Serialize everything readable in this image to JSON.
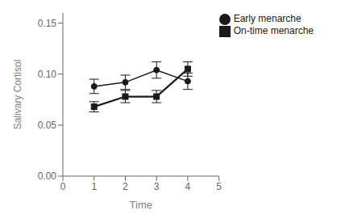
{
  "chart_data": {
    "type": "line",
    "xlabel": "Time",
    "ylabel": "Salivary Cortisol",
    "x": [
      1,
      2,
      3,
      4
    ],
    "series": [
      {
        "name": "Early menarche",
        "color": "#1a1a1a",
        "marker": "circle",
        "line_style": "solid",
        "values": [
          0.088,
          0.092,
          0.104,
          0.093
        ],
        "yerr": [
          0.007,
          0.007,
          0.008,
          0.008
        ]
      },
      {
        "name": "On-time menarche",
        "color": "#1a1a1a",
        "marker": "square",
        "line_style": "solid",
        "values": [
          0.068,
          0.078,
          0.078,
          0.105
        ],
        "yerr": [
          0.005,
          0.006,
          0.006,
          0.007
        ]
      }
    ],
    "xlim": [
      0,
      5
    ],
    "xticks": [
      0,
      1,
      2,
      3,
      4,
      5
    ],
    "ylim": [
      0.0,
      0.16
    ],
    "yticks": [
      {
        "value": 0.0,
        "label": "0.00"
      },
      0.05,
      {
        "value": 0.1,
        "label": "0.10"
      },
      0.15
    ],
    "grid": false,
    "legend": "upper right"
  }
}
